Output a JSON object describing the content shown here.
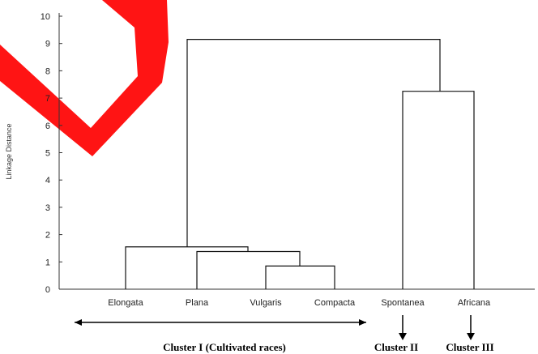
{
  "chart_data": {
    "type": "dendrogram",
    "ylabel": "Linkage Distance",
    "ylim": [
      0,
      10
    ],
    "yticks": [
      "0",
      "1",
      "2",
      "3",
      "4",
      "5",
      "6",
      "7",
      "8",
      "9",
      "10"
    ],
    "leaves": [
      "Elongata",
      "Plana",
      "Vulgaris",
      "Compacta",
      "Spontanea",
      "Africana"
    ],
    "merges": [
      {
        "left": "Vulgaris",
        "right": "Compacta",
        "height": 0.85
      },
      {
        "left": "Plana",
        "right": "Vulgaris+Compacta",
        "height": 1.38
      },
      {
        "left": "Elongata",
        "right": "Plana+Vulgaris+Compacta",
        "height": 1.55
      },
      {
        "left": "Spontanea",
        "right": "Africana",
        "height": 7.25
      },
      {
        "left": "Cluster I",
        "right": "Spontanea+Africana",
        "height": 9.15
      }
    ],
    "clusters": [
      {
        "label": "Cluster I (Cultivated races)"
      },
      {
        "label": "Cluster II"
      },
      {
        "label": "Cluster III"
      }
    ],
    "watermark_color": "#ff0000"
  }
}
